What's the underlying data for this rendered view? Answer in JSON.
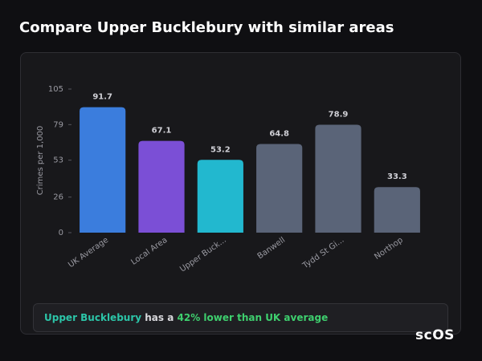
{
  "title": "Compare Upper Bucklebury with similar areas",
  "chart_data": {
    "type": "bar",
    "categories": [
      "UK Average",
      "Local Area",
      "Upper Buck...",
      "Banwell",
      "Tydd St Gi...",
      "Northop"
    ],
    "values": [
      91.7,
      67.1,
      53.2,
      64.8,
      78.9,
      33.3
    ],
    "colors": [
      "#3b7ddd",
      "#7b4fd6",
      "#22b8cf",
      "#5a6478",
      "#5a6478",
      "#5a6478"
    ],
    "ylabel": "Crimes per 1,000",
    "ylim": [
      0,
      105
    ],
    "yticks": [
      0,
      26,
      53,
      79,
      105
    ]
  },
  "summary": {
    "area": "Upper Bucklebury",
    "text": "has a",
    "highlight": "42% lower than UK average"
  },
  "logo": "scOS"
}
